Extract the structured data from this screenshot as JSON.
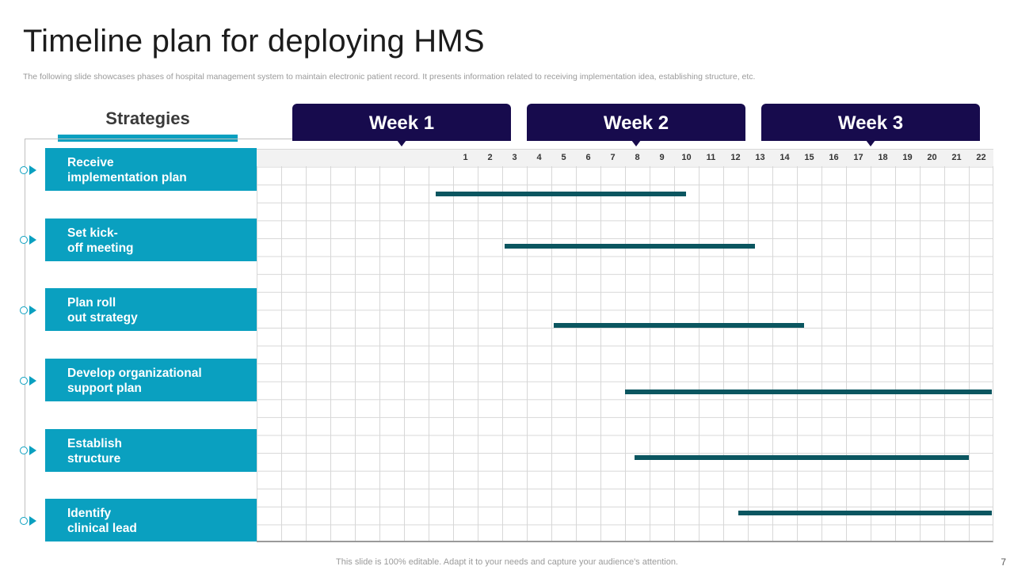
{
  "title": "Timeline plan for deploying HMS",
  "subtitle": "The following slide showcases phases of hospital management system to maintain electronic patient record. It presents information related to receiving implementation idea, establishing structure, etc.",
  "strategies_heading": "Strategies",
  "weeks": [
    {
      "label": "Week 1"
    },
    {
      "label": "Week 2"
    },
    {
      "label": "Week 3"
    }
  ],
  "days": [
    "1",
    "2",
    "3",
    "4",
    "5",
    "6",
    "7",
    "8",
    "9",
    "10",
    "11",
    "12",
    "13",
    "14",
    "15",
    "16",
    "17",
    "18",
    "19",
    "20",
    "21",
    "22"
  ],
  "strategies": [
    {
      "label": "Receive\nimplementation plan",
      "start_day": 0.3,
      "end_day": 10.5
    },
    {
      "label": "Set kick-\noff meeting",
      "start_day": 3.1,
      "end_day": 13.3
    },
    {
      "label": "Plan roll\nout strategy",
      "start_day": 5.1,
      "end_day": 15.3
    },
    {
      "label": "Develop organizational\nsupport plan",
      "start_day": 8.0,
      "end_day": 23.0
    },
    {
      "label": "Establish\nstructure",
      "start_day": 8.4,
      "end_day": 22.0
    },
    {
      "label": "Identify\nclinical lead",
      "start_day": 12.6,
      "end_day": 23.0
    }
  ],
  "colors": {
    "week_tab": "#170b4d",
    "strategy_box": "#0aa0c0",
    "bar": "#0b5660"
  },
  "footer": "This slide is 100% editable. Adapt it to your needs and capture your audience's attention.",
  "page_number": "7"
}
